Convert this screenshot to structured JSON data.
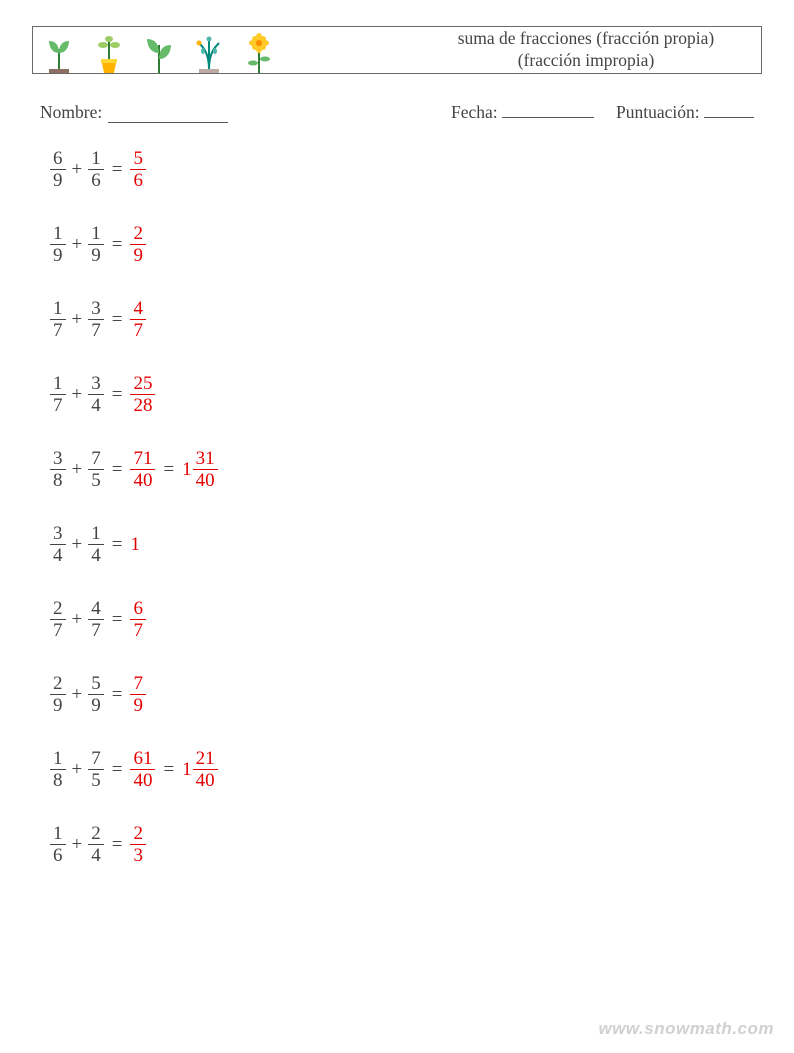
{
  "colors": {
    "text": "#444444",
    "answer": "#e30000",
    "border": "#6a6a6a",
    "background": "#ffffff",
    "watermark": "rgba(120,120,120,0.35)"
  },
  "header": {
    "title_line1": "suma de fracciones (fracción propia)",
    "title_line2": "(fracción impropia)",
    "title_fontsize": 17.5
  },
  "meta": {
    "name_label": "Nombre:",
    "date_label": "Fecha:",
    "score_label": "Puntuación:",
    "name_line_width": 120,
    "date_line_width": 92,
    "score_line_width": 50,
    "fontsize": 17.5
  },
  "icons": [
    {
      "name": "sprout-icon",
      "stem": "#2e7d32",
      "leaf": "#66bb6a",
      "soil": "#8d6e63"
    },
    {
      "name": "potted-plant-icon",
      "stem": "#2e7d32",
      "leaf": "#9ccc65",
      "pot": "#ffb300",
      "pot_rim": "#fdd835"
    },
    {
      "name": "seedling-icon",
      "stem": "#2e7d32",
      "leaf": "#66bb6a"
    },
    {
      "name": "willow-plant-icon",
      "stem": "#00897b",
      "leaf": "#4db6ac",
      "fruit": "#ffb300",
      "soil": "#bcaaa4"
    },
    {
      "name": "flower-icon",
      "stem": "#2e7d32",
      "leaf": "#66bb6a",
      "petal": "#ffca28",
      "center": "#fb8c00"
    }
  ],
  "equation_style": {
    "fontsize": 19,
    "row_spacing": 34,
    "fraction_bar_width": 1.3,
    "answer_color": "#e30000",
    "term_color": "#444444"
  },
  "equations": [
    {
      "a": {
        "n": "6",
        "d": "9"
      },
      "b": {
        "n": "1",
        "d": "6"
      },
      "results": [
        {
          "type": "frac",
          "n": "5",
          "d": "6"
        }
      ]
    },
    {
      "a": {
        "n": "1",
        "d": "9"
      },
      "b": {
        "n": "1",
        "d": "9"
      },
      "results": [
        {
          "type": "frac",
          "n": "2",
          "d": "9"
        }
      ]
    },
    {
      "a": {
        "n": "1",
        "d": "7"
      },
      "b": {
        "n": "3",
        "d": "7"
      },
      "results": [
        {
          "type": "frac",
          "n": "4",
          "d": "7"
        }
      ]
    },
    {
      "a": {
        "n": "1",
        "d": "7"
      },
      "b": {
        "n": "3",
        "d": "4"
      },
      "results": [
        {
          "type": "frac",
          "n": "25",
          "d": "28"
        }
      ]
    },
    {
      "a": {
        "n": "3",
        "d": "8"
      },
      "b": {
        "n": "7",
        "d": "5"
      },
      "results": [
        {
          "type": "frac",
          "n": "71",
          "d": "40"
        },
        {
          "type": "mixed",
          "w": "1",
          "n": "31",
          "d": "40"
        }
      ]
    },
    {
      "a": {
        "n": "3",
        "d": "4"
      },
      "b": {
        "n": "1",
        "d": "4"
      },
      "results": [
        {
          "type": "int",
          "v": "1"
        }
      ]
    },
    {
      "a": {
        "n": "2",
        "d": "7"
      },
      "b": {
        "n": "4",
        "d": "7"
      },
      "results": [
        {
          "type": "frac",
          "n": "6",
          "d": "7"
        }
      ]
    },
    {
      "a": {
        "n": "2",
        "d": "9"
      },
      "b": {
        "n": "5",
        "d": "9"
      },
      "results": [
        {
          "type": "frac",
          "n": "7",
          "d": "9"
        }
      ]
    },
    {
      "a": {
        "n": "1",
        "d": "8"
      },
      "b": {
        "n": "7",
        "d": "5"
      },
      "results": [
        {
          "type": "frac",
          "n": "61",
          "d": "40"
        },
        {
          "type": "mixed",
          "w": "1",
          "n": "21",
          "d": "40"
        }
      ]
    },
    {
      "a": {
        "n": "1",
        "d": "6"
      },
      "b": {
        "n": "2",
        "d": "4"
      },
      "results": [
        {
          "type": "frac",
          "n": "2",
          "d": "3"
        }
      ]
    }
  ],
  "watermark": "www.snowmath.com"
}
